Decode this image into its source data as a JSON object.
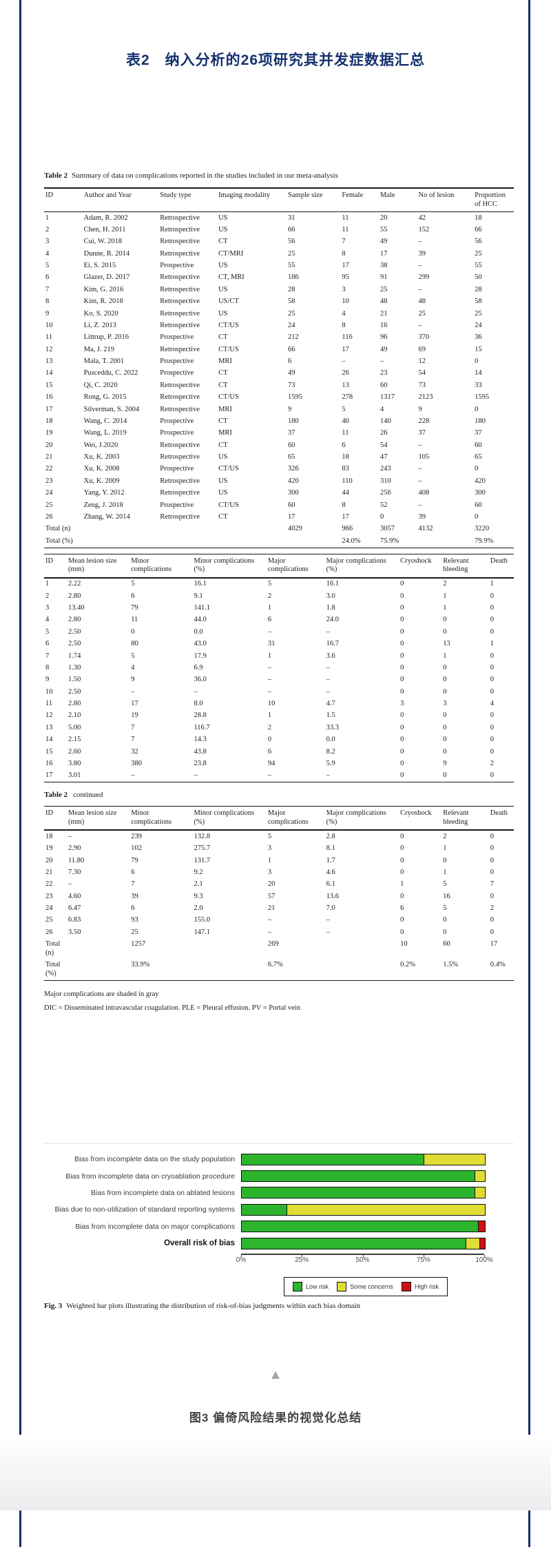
{
  "page": {
    "title": "表2　纳入分析的26项研究其并发症数据汇总",
    "bottom_caption": "图3 偏倚风险结果的视觉化总结",
    "accent_navy": "#14316e",
    "up_triangle_glyph": "▲"
  },
  "table2": {
    "caption_label": "Table 2",
    "caption_text": "Summary of data on complications reported in the studies included in our meta-analysis",
    "part1": {
      "headers": [
        "ID",
        "Author and Year",
        "Study type",
        "Imaging modality",
        "Sample size",
        "Female",
        "Male",
        "No of lesion",
        "Proportion of HCC"
      ],
      "rows": [
        [
          "1",
          "Adam, R. 2002",
          "Retrospective",
          "US",
          "31",
          "11",
          "20",
          "42",
          "18"
        ],
        [
          "2",
          "Chen, H. 2011",
          "Retrospective",
          "US",
          "66",
          "11",
          "55",
          "152",
          "66"
        ],
        [
          "3",
          "Cui, W. 2018",
          "Retrospective",
          "CT",
          "56",
          "7",
          "49",
          "–",
          "56"
        ],
        [
          "4",
          "Dunne, R. 2014",
          "Retrospective",
          "CT/MRI",
          "25",
          "8",
          "17",
          "39",
          "25"
        ],
        [
          "5",
          "Ei, S. 2015",
          "Prospective",
          "US",
          "55",
          "17",
          "38",
          "–",
          "55"
        ],
        [
          "6",
          "Glazer, D. 2017",
          "Retrospective",
          "CT, MRI",
          "186",
          "95",
          "91",
          "299",
          "50"
        ],
        [
          "7",
          "Kim, G. 2016",
          "Retrospective",
          "US",
          "28",
          "3",
          "25",
          "–",
          "28"
        ],
        [
          "8",
          "Kim, R. 2018",
          "Retrospective",
          "US/CT",
          "58",
          "10",
          "48",
          "48",
          "58"
        ],
        [
          "9",
          "Ko, S. 2020",
          "Retrospective",
          "US",
          "25",
          "4",
          "21",
          "25",
          "25"
        ],
        [
          "10",
          "Li, Z. 2013",
          "Retrospective",
          "CT/US",
          "24",
          "8",
          "16",
          "–",
          "24"
        ],
        [
          "11",
          "Littrup, P. 2016",
          "Prospective",
          "CT",
          "212",
          "116",
          "96",
          "370",
          "36"
        ],
        [
          "12",
          "Ma, J. 219",
          "Retrospective",
          "CT/US",
          "66",
          "17",
          "49",
          "69",
          "15"
        ],
        [
          "13",
          "Mala, T. 2001",
          "Prospective",
          "MRI",
          "6",
          "–",
          "–",
          "12",
          "0"
        ],
        [
          "14",
          "Pusceddu, C. 2022",
          "Prospective",
          "CT",
          "49",
          "26",
          "23",
          "54",
          "14"
        ],
        [
          "15",
          "Qi, C. 2020",
          "Retrospective",
          "CT",
          "73",
          "13",
          "60",
          "73",
          "33"
        ],
        [
          "16",
          "Rong, G. 2015",
          "Retrospective",
          "CT/US",
          "1595",
          "278",
          "1317",
          "2123",
          "1595"
        ],
        [
          "17",
          "Silverman, S. 2004",
          "Retrospective",
          "MRI",
          "9",
          "5",
          "4",
          "9",
          "0"
        ],
        [
          "18",
          "Wang, C. 2014",
          "Prospective",
          "CT",
          "180",
          "40",
          "140",
          "228",
          "180"
        ],
        [
          "19",
          "Wang, L. 2019",
          "Prospective",
          "MRI",
          "37",
          "11",
          "26",
          "37",
          "37"
        ],
        [
          "20",
          "Wei, J.2020",
          "Retrospective",
          "CT",
          "60",
          "6",
          "54",
          "–",
          "60"
        ],
        [
          "21",
          "Xu, K. 2003",
          "Retrospective",
          "US",
          "65",
          "18",
          "47",
          "105",
          "65"
        ],
        [
          "22",
          "Xu, K. 2008",
          "Prospective",
          "CT/US",
          "326",
          "83",
          "243",
          "–",
          "0"
        ],
        [
          "23",
          "Xu, K. 2009",
          "Retrospective",
          "US",
          "420",
          "110",
          "310",
          "–",
          "420"
        ],
        [
          "24",
          "Yang, Y. 2012",
          "Retrospective",
          "US",
          "300",
          "44",
          "256",
          "408",
          "300"
        ],
        [
          "25",
          "Zeng, J. 2018",
          "Prospective",
          "CT/US",
          "60",
          "8",
          "52",
          "–",
          "60"
        ],
        [
          "26",
          "Zhang, W. 2014",
          "Retrospective",
          "CT",
          "17",
          "17",
          "0",
          "39",
          "0"
        ],
        [
          "Total (n)",
          "",
          "",
          "",
          "4029",
          "966",
          "3057",
          "4132",
          "3220"
        ],
        [
          "Total (%)",
          "",
          "",
          "",
          "",
          "24.0%",
          "75.9%",
          "",
          "79.9%"
        ]
      ]
    },
    "part2": {
      "headers": [
        "ID",
        "Mean lesion size (mm)",
        "Minor complications",
        "Minor complications (%)",
        "Major complications",
        "Major complications (%)",
        "Cryoshock",
        "Relevant bleeding",
        "Death"
      ],
      "rows": [
        [
          "1",
          "2.22",
          "5",
          "16.1",
          "5",
          "16.1",
          "0",
          "2",
          "1"
        ],
        [
          "2",
          "2.80",
          "6",
          "9.1",
          "2",
          "3.0",
          "0",
          "1",
          "0"
        ],
        [
          "3",
          "13.40",
          "79",
          "141.1",
          "1",
          "1.8",
          "0",
          "1",
          "0"
        ],
        [
          "4",
          "2.80",
          "11",
          "44.0",
          "6",
          "24.0",
          "0",
          "0",
          "0"
        ],
        [
          "5",
          "2.50",
          "0",
          "0.0",
          "–",
          "–",
          "0",
          "0",
          "0"
        ],
        [
          "6",
          "2.50",
          "80",
          "43.0",
          "31",
          "16.7",
          "0",
          "13",
          "1"
        ],
        [
          "7",
          "1.74",
          "5",
          "17.9",
          "1",
          "3.6",
          "0",
          "1",
          "0"
        ],
        [
          "8",
          "1.30",
          "4",
          "6.9",
          "–",
          "–",
          "0",
          "0",
          "0"
        ],
        [
          "9",
          "1.50",
          "9",
          "36.0",
          "–",
          "–",
          "0",
          "0",
          "0"
        ],
        [
          "10",
          "2.50",
          "–",
          "–",
          "–",
          "–",
          "0",
          "0",
          "0"
        ],
        [
          "11",
          "2.80",
          "17",
          "8.0",
          "10",
          "4.7",
          "3",
          "3",
          "4"
        ],
        [
          "12",
          "2.10",
          "19",
          "28.8",
          "1",
          "1.5",
          "0",
          "0",
          "0"
        ],
        [
          "13",
          "5.00",
          "7",
          "116.7",
          "2",
          "33.3",
          "0",
          "0",
          "0"
        ],
        [
          "14",
          "2.15",
          "7",
          "14.3",
          "0",
          "0.0",
          "0",
          "0",
          "0"
        ],
        [
          "15",
          "2.60",
          "32",
          "43.8",
          "6",
          "8.2",
          "0",
          "0",
          "0"
        ],
        [
          "16",
          "3.80",
          "380",
          "23.8",
          "94",
          "5.9",
          "0",
          "9",
          "2"
        ],
        [
          "17",
          "3.01",
          "–",
          "–",
          "–",
          "–",
          "0",
          "0",
          "0"
        ]
      ]
    },
    "continued_label": "Table 2",
    "continued_text": "continued",
    "part3": {
      "headers": [
        "ID",
        "Mean lesion size (mm)",
        "Minor complications",
        "Minor complications (%)",
        "Major complications",
        "Major complications (%)",
        "Cryoshock",
        "Relevant bleeding",
        "Death"
      ],
      "rows": [
        [
          "18",
          "–",
          "239",
          "132.8",
          "5",
          "2.8",
          "0",
          "2",
          "0"
        ],
        [
          "19",
          "2.90",
          "102",
          "275.7",
          "3",
          "8.1",
          "0",
          "1",
          "0"
        ],
        [
          "20",
          "11.80",
          "79",
          "131.7",
          "1",
          "1.7",
          "0",
          "0",
          "0"
        ],
        [
          "21",
          "7.30",
          "6",
          "9.2",
          "3",
          "4.6",
          "0",
          "1",
          "0"
        ],
        [
          "22",
          "–",
          "7",
          "2.1",
          "20",
          "6.1",
          "1",
          "5",
          "7"
        ],
        [
          "23",
          "4.60",
          "39",
          "9.3",
          "57",
          "13.6",
          "0",
          "16",
          "0"
        ],
        [
          "24",
          "6.47",
          "6",
          "2.0",
          "21",
          "7.0",
          "6",
          "5",
          "2"
        ],
        [
          "25",
          "6.83",
          "93",
          "155.0",
          "–",
          "–",
          "0",
          "0",
          "0"
        ],
        [
          "26",
          "3.50",
          "25",
          "147.1",
          "–",
          "–",
          "0",
          "0",
          "0"
        ],
        [
          "Total (n)",
          "",
          "1257",
          "",
          "269",
          "",
          "10",
          "60",
          "17"
        ],
        [
          "Total (%)",
          "",
          "33.9%",
          "",
          "6.7%",
          "",
          "0.2%",
          "1.5%",
          "0.4%"
        ]
      ]
    },
    "note1": "Major complications are shaded in gray",
    "note2": "DIC = Disseminated intravascular coagulation. PLE = Pleural effusion. PV = Portal vein"
  },
  "chart_data": {
    "type": "bar",
    "stacked": true,
    "orientation": "horizontal",
    "unit": "percent",
    "categories": [
      "Bias from incomplete data on the study population",
      "Bias from incomplete data on cryoablation procedure",
      "Bias from incomplete data on ablated lesions",
      "Bias due to non-utilization of standard reporting systems",
      "Bias from incomplete data on major complications",
      "Overall risk of bias"
    ],
    "series": [
      {
        "name": "Low risk",
        "color": "#2cb52c",
        "values": [
          75,
          96,
          96,
          18.5,
          97.5,
          92.5
        ]
      },
      {
        "name": "Some concerns",
        "color": "#e0dc35",
        "values": [
          25,
          4,
          4,
          81.5,
          0,
          5.5
        ]
      },
      {
        "name": "High risk",
        "color": "#cc1111",
        "values": [
          0,
          0,
          0,
          0,
          2.5,
          2
        ]
      }
    ],
    "x_ticks": [
      "0%",
      "25%",
      "50%",
      "75%",
      "100%"
    ],
    "xlim": [
      0,
      100
    ],
    "grid": false,
    "legend_position": "bottom"
  },
  "figure3": {
    "caption_label": "Fig. 3",
    "caption_text": "Weighted bar plots illustrating the distribution of risk-of-bias judgments within each bias domain"
  }
}
